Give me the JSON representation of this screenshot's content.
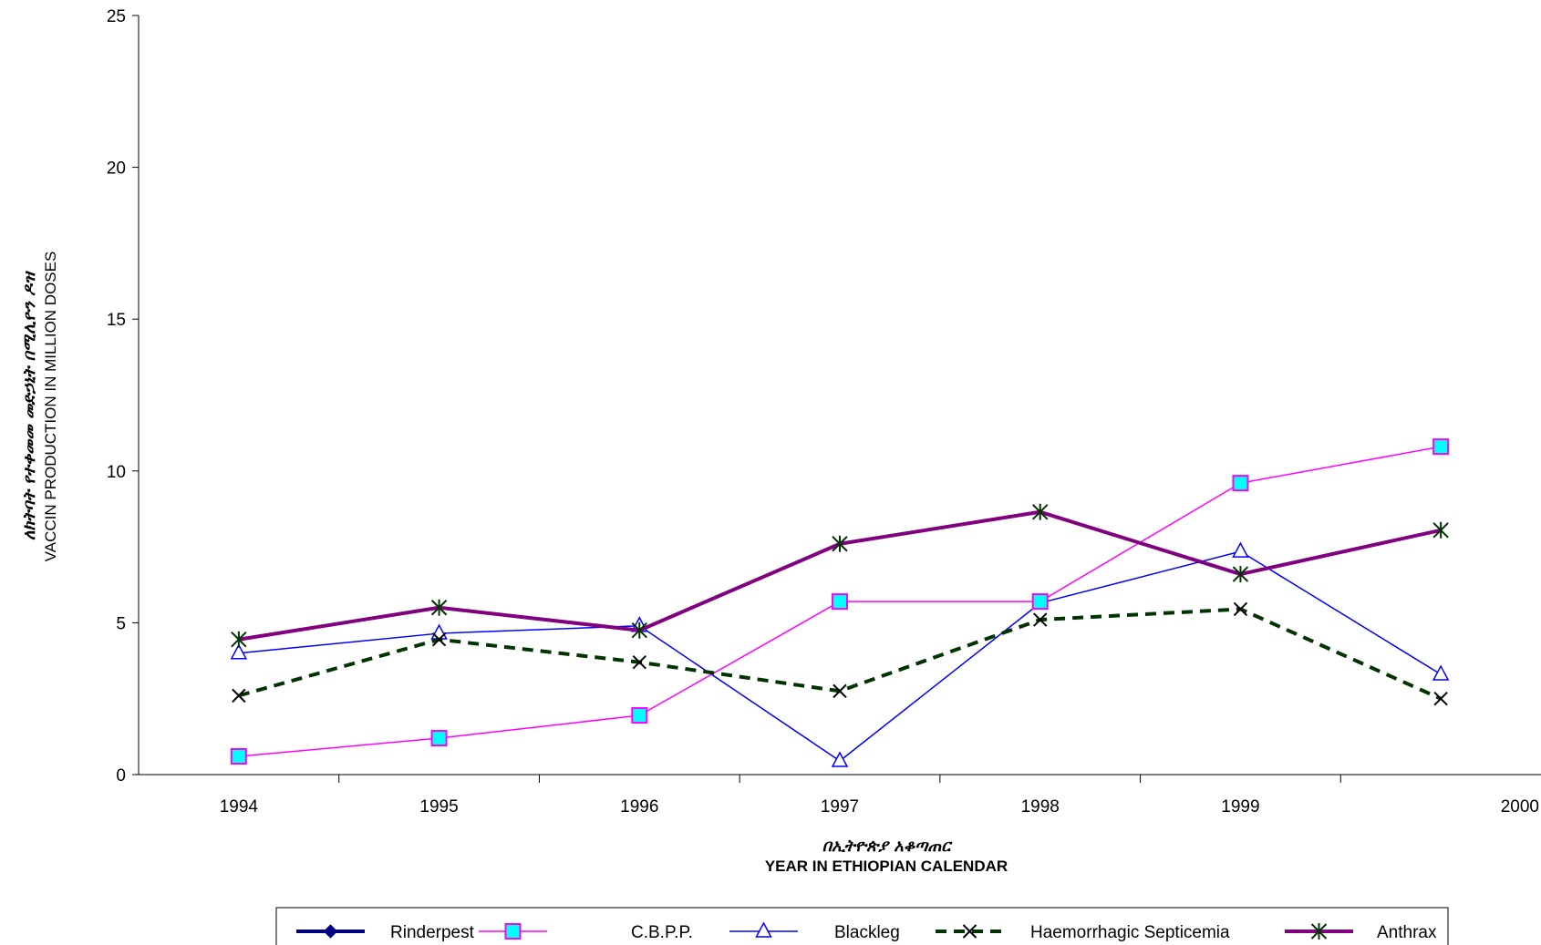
{
  "chart_data": {
    "type": "line",
    "x_categories": [
      "1994",
      "1995",
      "1996",
      "1997",
      "1998",
      "1999",
      "2000"
    ],
    "ylim": [
      0,
      25
    ],
    "y_ticks": [
      "0",
      "5",
      "10",
      "15",
      "20",
      "25"
    ],
    "xlabel_line1": "በኢትዮጵያ አቆጣጠር",
    "xlabel_line2": "YEAR IN ETHIOPIAN CALENDAR",
    "ylabel_line1": "ለክትባት የተቀመመ መድኃኒት በሚሊዮን ዶዝ",
    "ylabel_line2": "VACCIN PRODUCTION IN MILLION DOSES",
    "grid": false,
    "legend_position": "bottom",
    "series": [
      {
        "name": "Rinderpest",
        "color": "#000080",
        "marker": "diamond",
        "dash": "solid",
        "width": 4,
        "values": []
      },
      {
        "name": "C.B.P.P.",
        "color": "#ff00ff",
        "marker": "square",
        "dash": "solid",
        "width": 1.5,
        "values": [
          0.6,
          1.2,
          1.95,
          5.7,
          5.7,
          9.6,
          10.8
        ]
      },
      {
        "name": "Blackleg",
        "color": "#0000ff",
        "marker": "triangle",
        "dash": "solid",
        "width": 1.5,
        "values": [
          4.0,
          4.65,
          4.9,
          0.45,
          5.65,
          7.35,
          3.3
        ]
      },
      {
        "name": "Haemorrhagic Septicemia",
        "color": "#003300",
        "marker": "x",
        "dash": "dashed",
        "width": 4,
        "values": [
          2.6,
          4.45,
          3.7,
          2.75,
          5.1,
          5.45,
          2.5
        ]
      },
      {
        "name": "Anthrax",
        "color": "#800080",
        "marker": "star",
        "dash": "solid",
        "width": 4,
        "values": [
          4.45,
          5.5,
          4.75,
          7.6,
          8.65,
          6.6,
          8.05
        ]
      }
    ]
  }
}
